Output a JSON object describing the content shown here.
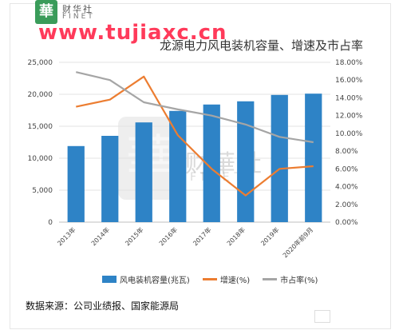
{
  "header": {
    "logo_char": "華",
    "brand_cn": "财华社",
    "brand_en": "FINET",
    "watermark_url": "www.tujiaxc.cn"
  },
  "watermark": {
    "logo_char": "華",
    "text_cn": "财華社",
    "text_en": "FINET"
  },
  "chart_data": {
    "type": "bar",
    "title": "龙源电力风电装机容量、增速及市占率",
    "categories": [
      "2013年",
      "2014年",
      "2015年",
      "2016年",
      "2017年",
      "2018年",
      "2019年",
      "2020年前9月"
    ],
    "series": [
      {
        "name": "风电装机容量(兆瓦)",
        "type": "bar",
        "axis": "left",
        "color": "#2e83c6",
        "values": [
          11900,
          13500,
          15600,
          17400,
          18400,
          18900,
          19900,
          20100
        ]
      },
      {
        "name": "增速(%)",
        "type": "line",
        "axis": "right",
        "color": "#ec7d31",
        "values": [
          13.0,
          13.8,
          16.4,
          9.8,
          6.0,
          3.0,
          6.0,
          6.3
        ]
      },
      {
        "name": "市占率(%)",
        "type": "line",
        "axis": "right",
        "color": "#a5a5a5",
        "values": [
          16.9,
          16.0,
          13.5,
          12.7,
          12.0,
          11.0,
          9.6,
          9.0
        ]
      }
    ],
    "y_left": {
      "ylim": [
        0,
        25000
      ],
      "ticks": [
        "0",
        "5,000",
        "10,000",
        "15,000",
        "20,000",
        "25,000"
      ]
    },
    "y_right": {
      "ylim": [
        0,
        18
      ],
      "ticks": [
        "0.00%",
        "2.00%",
        "4.00%",
        "6.00%",
        "8.00%",
        "10.00%",
        "12.00%",
        "14.00%",
        "16.00%",
        "18.00%"
      ]
    },
    "grid": true,
    "legend_position": "bottom"
  },
  "footer": {
    "source": "数据来源：公司业绩报、国家能源局"
  }
}
